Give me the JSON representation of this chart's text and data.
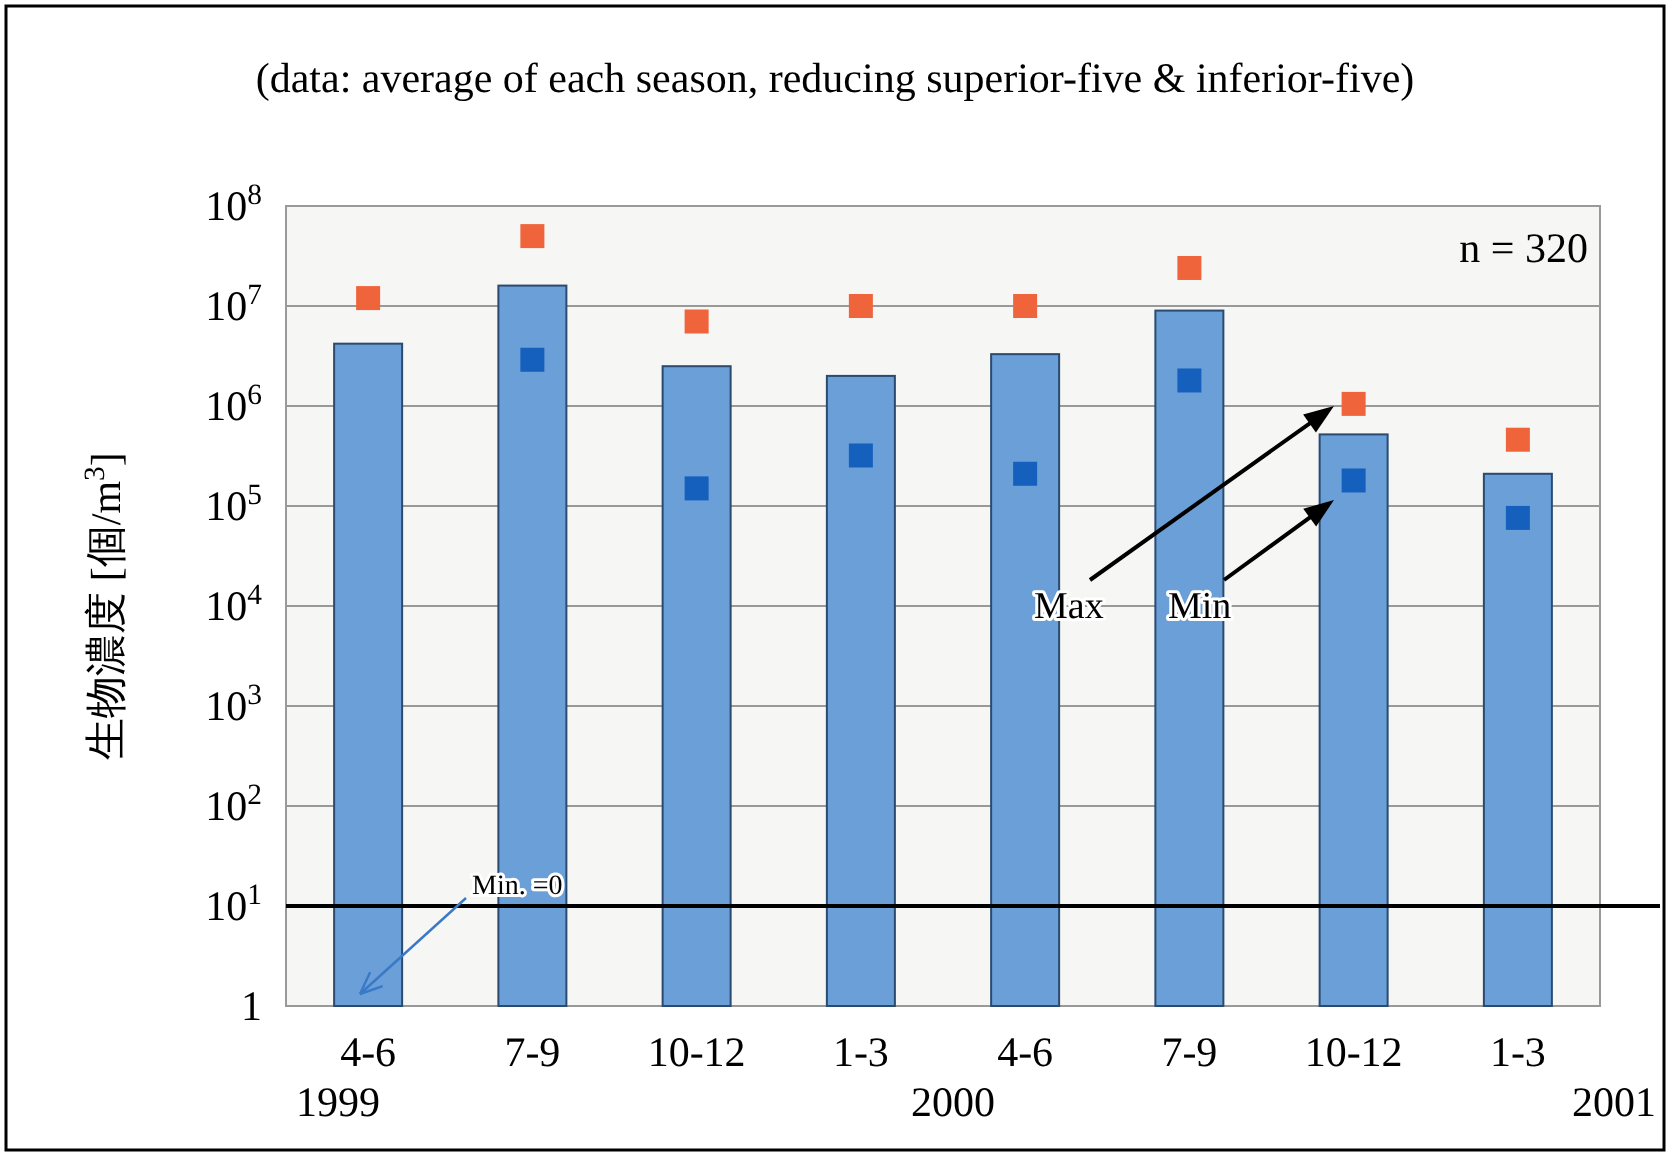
{
  "chart_data": {
    "type": "bar",
    "title": "(data: average of each season, reducing superior-five & inferior-five)",
    "ylabel": "生物濃度 [個/m$^{3}$]",
    "categories": [
      "4-6",
      "7-9",
      "10-12",
      "1-3",
      "4-6",
      "7-9",
      "10-12",
      "1-3"
    ],
    "series": [
      {
        "color": "#6a9fd8",
        "values": [
          4200000,
          16000000,
          2500000,
          2000000,
          3300000,
          9000000,
          520000,
          210000
        ]
      },
      {
        "type": "scatter",
        "color": "#f0643c",
        "values": [
          12000000,
          50000000,
          7000000,
          10000000,
          10000000,
          24000000,
          1050000,
          460000
        ]
      },
      {
        "type": "scatter",
        "color": "#1560bd",
        "values": [
          null,
          2900000,
          150000,
          320000,
          210000,
          1800000,
          180000,
          76000
        ]
      }
    ],
    "log": "y",
    "ylim": [
      1,
      100000000
    ],
    "yticks": [
      {
        "value": 1,
        "label": "1"
      },
      {
        "value": 10,
        "label": "10$^{1}$"
      },
      {
        "value": 100,
        "label": "10$^{2}$"
      },
      {
        "value": 1000,
        "label": "10$^{3}$"
      },
      {
        "value": 10000,
        "label": "10$^{4}$"
      },
      {
        "value": 100000,
        "label": "10$^{5}$"
      },
      {
        "value": 1000000,
        "label": "10$^{6}$"
      },
      {
        "value": 10000000,
        "label": "10$^{7}$"
      },
      {
        "value": 100000000,
        "label": "10$^{8}$"
      }
    ],
    "grid": "y",
    "marker": "square",
    "ref_lines": [
      {
        "axis": "y",
        "value": 10,
        "color": "#000000"
      }
    ],
    "annotations": [
      "n = 320",
      "Max",
      "Min",
      "Min. =0",
      "1999",
      "2000",
      "2001"
    ]
  }
}
